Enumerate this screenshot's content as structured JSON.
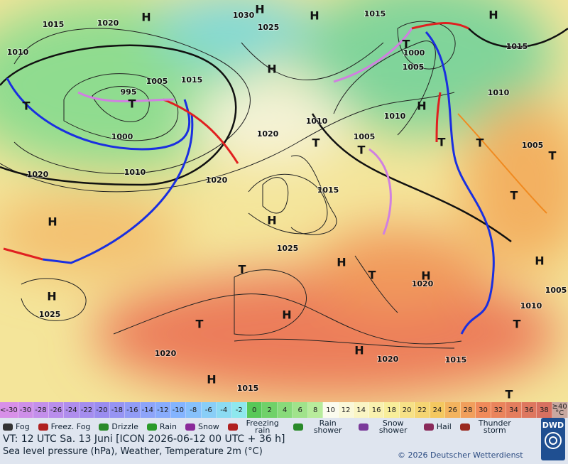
{
  "map": {
    "pressure": [
      "1015",
      "1020",
      "1010",
      "1030",
      "1025",
      "1015",
      "1015",
      "1000",
      "1005",
      "995",
      "1005",
      "1015",
      "1010",
      "1010",
      "1010",
      "1000",
      "1010",
      "1020",
      "1005",
      "1005",
      "1020",
      "1020",
      "1015",
      "1025",
      "1020",
      "1005",
      "1010",
      "1025",
      "1020",
      "1020",
      "1015",
      "1015"
    ],
    "highs": [
      "H",
      "H",
      "H",
      "H",
      "H",
      "H",
      "H",
      "H",
      "H",
      "H",
      "H",
      "H",
      "H",
      "H",
      "H"
    ],
    "lows": [
      "T",
      "T",
      "T",
      "T",
      "T",
      "T",
      "T",
      "T",
      "T",
      "T",
      "T",
      "T",
      "T",
      "T"
    ]
  },
  "scale": {
    "labels": [
      "<-30",
      "-30",
      "-28",
      "-26",
      "-24",
      "-22",
      "-20",
      "-18",
      "-16",
      "-14",
      "-12",
      "-10",
      "-8",
      "-6",
      "-4",
      "-2",
      "0",
      "2",
      "4",
      "6",
      "8",
      "10",
      "12",
      "14",
      "16",
      "18",
      "20",
      "22",
      "24",
      "26",
      "28",
      "30",
      "32",
      "34",
      "36",
      "38",
      "≥40 °C"
    ]
  },
  "weather": [
    "Fog",
    "Freez. Fog",
    "Drizzle",
    "Rain",
    "Snow",
    "Freezing rain",
    "Rain shower",
    "Snow shower",
    "Hail",
    "Thunder storm"
  ],
  "footer": {
    "valid": "VT: 12 UTC Sa.  13 Juni [ICON 2026-06-12  00 UTC + 36 h]",
    "subtitle": "Sea level pressure (hPa), Weather, Temperature 2m (°C)",
    "copyright": "© 2026 Deutscher Wetterdienst",
    "logo": "DWD"
  }
}
